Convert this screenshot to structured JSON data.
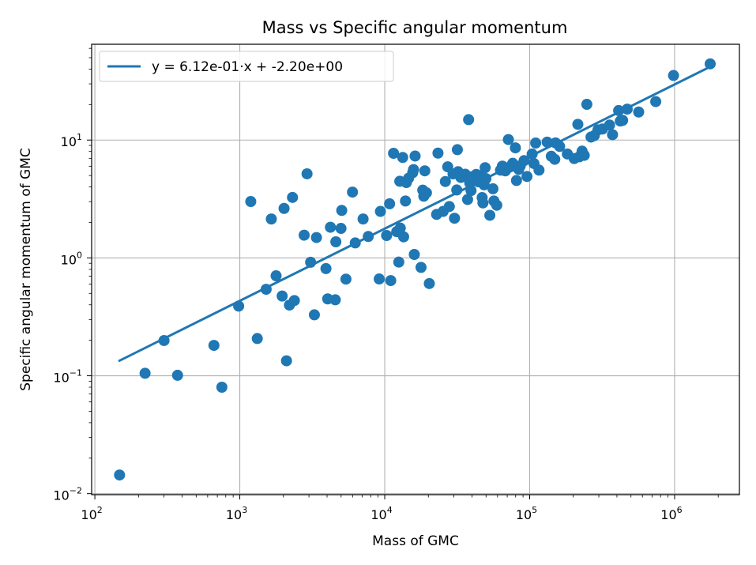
{
  "chart_data": {
    "type": "scatter",
    "title": "Mass vs Specific angular momentum",
    "xlabel": "Mass of GMC",
    "ylabel": "Specific angular momentum of GMC",
    "xscale": "log",
    "yscale": "log",
    "xlim": [
      95,
      2800000
    ],
    "ylim": [
      0.0098,
      65
    ],
    "grid": true,
    "legend_placement": "top-left",
    "colors": {
      "points": "#1f77b4",
      "fit_line": "#1f77b4",
      "grid": "#b0b0b0"
    },
    "x_ticks": [
      {
        "base": "10",
        "exp": "2",
        "value": 100
      },
      {
        "base": "10",
        "exp": "3",
        "value": 1000
      },
      {
        "base": "10",
        "exp": "4",
        "value": 10000
      },
      {
        "base": "10",
        "exp": "5",
        "value": 100000
      },
      {
        "base": "10",
        "exp": "6",
        "value": 1000000
      }
    ],
    "y_ticks": [
      {
        "base": "10",
        "exp": "−2",
        "value": 0.01
      },
      {
        "base": "10",
        "exp": "−1",
        "value": 0.1
      },
      {
        "base": "10",
        "exp": "0",
        "value": 1
      },
      {
        "base": "10",
        "exp": "1",
        "value": 10
      }
    ],
    "fit": {
      "label": "y = 6.12e-01·x + -2.20e+00",
      "slope": 0.612,
      "intercept": -2.2,
      "x_range": [
        148,
        1750000
      ]
    },
    "points": [
      [
        148,
        0.0144
      ],
      [
        222,
        0.105
      ],
      [
        300,
        0.199
      ],
      [
        372,
        0.101
      ],
      [
        663,
        0.181
      ],
      [
        752,
        0.08
      ],
      [
        982,
        0.39
      ],
      [
        1190,
        3.01
      ],
      [
        1320,
        0.207
      ],
      [
        1520,
        0.542
      ],
      [
        1650,
        2.14
      ],
      [
        1780,
        0.705
      ],
      [
        1960,
        0.475
      ],
      [
        2020,
        2.63
      ],
      [
        2100,
        0.134
      ],
      [
        2200,
        0.398
      ],
      [
        2310,
        3.26
      ],
      [
        2380,
        0.435
      ],
      [
        2780,
        1.56
      ],
      [
        2910,
        5.17
      ],
      [
        3080,
        0.919
      ],
      [
        3270,
        0.329
      ],
      [
        3380,
        1.49
      ],
      [
        3930,
        0.812
      ],
      [
        4040,
        0.449
      ],
      [
        4220,
        1.82
      ],
      [
        4560,
        0.441
      ],
      [
        4600,
        1.37
      ],
      [
        4990,
        1.78
      ],
      [
        5050,
        2.53
      ],
      [
        5400,
        0.661
      ],
      [
        5990,
        3.62
      ],
      [
        6260,
        1.34
      ],
      [
        7090,
        2.14
      ],
      [
        7700,
        1.52
      ],
      [
        9160,
        0.663
      ],
      [
        9340,
        2.48
      ],
      [
        10300,
        1.55
      ],
      [
        10800,
        2.88
      ],
      [
        11000,
        0.642
      ],
      [
        11500,
        7.72
      ],
      [
        12100,
        1.67
      ],
      [
        12500,
        0.922
      ],
      [
        12700,
        4.47
      ],
      [
        12800,
        1.79
      ],
      [
        13300,
        7.12
      ],
      [
        13500,
        1.51
      ],
      [
        13900,
        3.04
      ],
      [
        14100,
        4.36
      ],
      [
        14600,
        4.74
      ],
      [
        15600,
        5.29
      ],
      [
        15800,
        5.62
      ],
      [
        16200,
        7.32
      ],
      [
        16000,
        1.07
      ],
      [
        17800,
        0.831
      ],
      [
        18300,
        3.76
      ],
      [
        18600,
        3.34
      ],
      [
        18900,
        5.48
      ],
      [
        19400,
        3.57
      ],
      [
        20300,
        0.606
      ],
      [
        22800,
        2.34
      ],
      [
        23300,
        7.75
      ],
      [
        25300,
        2.48
      ],
      [
        26200,
        4.45
      ],
      [
        27200,
        5.93
      ],
      [
        27900,
        2.73
      ],
      [
        29600,
        5.16
      ],
      [
        30300,
        2.17
      ],
      [
        31400,
        3.77
      ],
      [
        31700,
        8.29
      ],
      [
        32100,
        5.39
      ],
      [
        33500,
        4.82
      ],
      [
        35900,
        5.13
      ],
      [
        37900,
        14.9
      ],
      [
        37300,
        3.13
      ],
      [
        38600,
        4.32
      ],
      [
        39400,
        3.73
      ],
      [
        39700,
        4.88
      ],
      [
        42800,
        5.11
      ],
      [
        44400,
        4.42
      ],
      [
        45200,
        4.97
      ],
      [
        46400,
        4.66
      ],
      [
        47000,
        3.25
      ],
      [
        47600,
        2.93
      ],
      [
        48500,
        4.17
      ],
      [
        49300,
        5.83
      ],
      [
        49900,
        4.71
      ],
      [
        53100,
        2.3
      ],
      [
        55800,
        3.86
      ],
      [
        56700,
        3.04
      ],
      [
        59300,
        2.8
      ],
      [
        62900,
        5.56
      ],
      [
        64800,
        6.01
      ],
      [
        68000,
        5.48
      ],
      [
        71300,
        10.1
      ],
      [
        72900,
        5.9
      ],
      [
        76400,
        6.35
      ],
      [
        79700,
        8.59
      ],
      [
        81100,
        4.54
      ],
      [
        84000,
        5.64
      ],
      [
        86100,
        6.03
      ],
      [
        91500,
        6.69
      ],
      [
        95800,
        4.91
      ],
      [
        104000,
        7.61
      ],
      [
        107000,
        6.32
      ],
      [
        110000,
        9.43
      ],
      [
        116000,
        5.56
      ],
      [
        132000,
        9.61
      ],
      [
        141000,
        7.29
      ],
      [
        149000,
        6.87
      ],
      [
        151000,
        9.46
      ],
      [
        161000,
        8.83
      ],
      [
        182000,
        7.62
      ],
      [
        203000,
        6.97
      ],
      [
        215000,
        13.6
      ],
      [
        220000,
        7.21
      ],
      [
        230000,
        8.05
      ],
      [
        238000,
        7.42
      ],
      [
        248000,
        20.1
      ],
      [
        265000,
        10.6
      ],
      [
        279000,
        10.9
      ],
      [
        296000,
        12.2
      ],
      [
        318000,
        12.4
      ],
      [
        356000,
        13.4
      ],
      [
        373000,
        11.1
      ],
      [
        411000,
        17.8
      ],
      [
        422000,
        14.5
      ],
      [
        438000,
        14.7
      ],
      [
        471000,
        18.3
      ],
      [
        565000,
        17.3
      ],
      [
        741000,
        21.2
      ],
      [
        983000,
        35.3
      ],
      [
        1760000,
        44.3
      ]
    ]
  }
}
